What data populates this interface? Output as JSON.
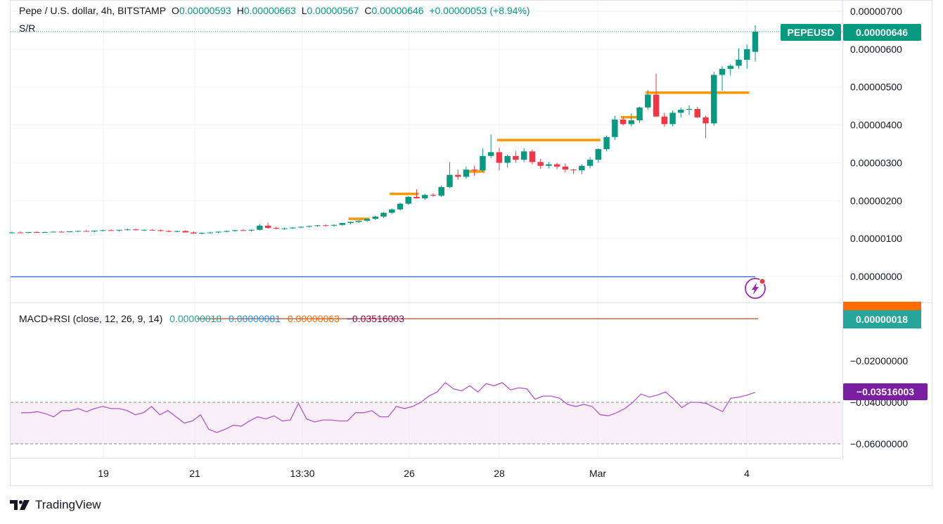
{
  "header": {
    "symbol": "Pepe / U.S. dollar, 4h, BITSTAMP",
    "o_label": "O",
    "o_value": "0.00000593",
    "h_label": "H",
    "h_value": "0.00000663",
    "l_label": "L",
    "l_value": "0.00000567",
    "c_label": "C",
    "c_value": "0.00000646",
    "change": "+0.00000053 (+8.94%)"
  },
  "indicator_sr": "S/R",
  "macd_header": {
    "name": "MACD+RSI (close, 12, 26, 9, 14)",
    "v1": "0.00000018",
    "v2": "0.00000081",
    "v3": "0.00000063",
    "v4": "−0.03516003"
  },
  "colors": {
    "up": "#089981",
    "down": "#f23645",
    "sr": "#ff9800",
    "rsi": "#b256c8",
    "zero_line": "#2962ff",
    "macd_signal": "#ff6d00"
  },
  "badges": {
    "symbol": "PEPEUSD",
    "price": "0.00000646",
    "macd": "0.00000018",
    "rsi": "−0.03516003"
  },
  "chart_data": [
    {
      "type": "candlestick",
      "title": "Pepe / U.S. dollar, 4h, BITSTAMP",
      "y_ticks": [
        "0.00000700",
        "0.00000600",
        "0.00000500",
        "0.00000400",
        "0.00000300",
        "0.00000200",
        "0.00000100",
        "0.00000000"
      ],
      "x_ticks": [
        "19",
        "21",
        "13:30",
        "26",
        "28",
        "Mar",
        "4"
      ],
      "ylim": [
        0,
        7e-06
      ],
      "candles_e8": [
        [
          115,
          118,
          113,
          116
        ],
        [
          116,
          118,
          114,
          115
        ],
        [
          115,
          117,
          114,
          117
        ],
        [
          117,
          119,
          115,
          116
        ],
        [
          116,
          118,
          115,
          117
        ],
        [
          117,
          119,
          116,
          118
        ],
        [
          118,
          120,
          116,
          117
        ],
        [
          117,
          119,
          116,
          119
        ],
        [
          119,
          121,
          117,
          120
        ],
        [
          120,
          122,
          118,
          119
        ],
        [
          119,
          121,
          117,
          121
        ],
        [
          121,
          123,
          119,
          122
        ],
        [
          122,
          124,
          120,
          121
        ],
        [
          121,
          123,
          119,
          123
        ],
        [
          123,
          126,
          121,
          124
        ],
        [
          124,
          126,
          121,
          122
        ],
        [
          122,
          124,
          120,
          123
        ],
        [
          123,
          125,
          121,
          122
        ],
        [
          122,
          124,
          119,
          120
        ],
        [
          120,
          122,
          117,
          118
        ],
        [
          118,
          121,
          116,
          120
        ],
        [
          120,
          122,
          118,
          116
        ],
        [
          116,
          119,
          113,
          113
        ],
        [
          113,
          116,
          111,
          115
        ],
        [
          115,
          118,
          113,
          116
        ],
        [
          116,
          119,
          114,
          118
        ],
        [
          118,
          121,
          116,
          120
        ],
        [
          120,
          123,
          118,
          122
        ],
        [
          122,
          125,
          120,
          121
        ],
        [
          121,
          124,
          119,
          123
        ],
        [
          123,
          138,
          121,
          134
        ],
        [
          134,
          142,
          126,
          128
        ],
        [
          128,
          131,
          124,
          126
        ],
        [
          126,
          129,
          123,
          127
        ],
        [
          127,
          130,
          125,
          129
        ],
        [
          129,
          132,
          127,
          131
        ],
        [
          131,
          134,
          129,
          133
        ],
        [
          133,
          136,
          131,
          135
        ],
        [
          135,
          138,
          132,
          134
        ],
        [
          134,
          137,
          131,
          136
        ],
        [
          136,
          140,
          134,
          141
        ],
        [
          141,
          145,
          138,
          144
        ],
        [
          144,
          148,
          141,
          147
        ],
        [
          147,
          152,
          144,
          152
        ],
        [
          152,
          160,
          149,
          158
        ],
        [
          158,
          170,
          155,
          168
        ],
        [
          168,
          180,
          164,
          177
        ],
        [
          177,
          195,
          174,
          192
        ],
        [
          192,
          212,
          189,
          210
        ],
        [
          210,
          230,
          206,
          206
        ],
        [
          206,
          218,
          202,
          215
        ],
        [
          215,
          220,
          210,
          213
        ],
        [
          213,
          240,
          210,
          236
        ],
        [
          236,
          302,
          233,
          268
        ],
        [
          268,
          282,
          255,
          263
        ],
        [
          263,
          290,
          258,
          282
        ],
        [
          282,
          292,
          266,
          280
        ],
        [
          280,
          338,
          276,
          318
        ],
        [
          318,
          375,
          312,
          328
        ],
        [
          328,
          340,
          280,
          300
        ],
        [
          300,
          322,
          288,
          318
        ],
        [
          318,
          330,
          300,
          308
        ],
        [
          308,
          338,
          302,
          330
        ],
        [
          330,
          335,
          296,
          302
        ],
        [
          302,
          310,
          284,
          292
        ],
        [
          292,
          302,
          285,
          296
        ],
        [
          296,
          300,
          283,
          290
        ],
        [
          290,
          298,
          275,
          282
        ],
        [
          282,
          284,
          270,
          280
        ],
        [
          280,
          296,
          270,
          292
        ],
        [
          292,
          315,
          285,
          308
        ],
        [
          308,
          338,
          300,
          336
        ],
        [
          336,
          372,
          330,
          368
        ],
        [
          368,
          424,
          360,
          414
        ],
        [
          414,
          420,
          398,
          402
        ],
        [
          402,
          430,
          396,
          412
        ],
        [
          412,
          448,
          405,
          446
        ],
        [
          446,
          492,
          440,
          480
        ],
        [
          480,
          536,
          470,
          422
        ],
        [
          422,
          432,
          395,
          402
        ],
        [
          402,
          438,
          396,
          432
        ],
        [
          432,
          446,
          420,
          440
        ],
        [
          440,
          452,
          426,
          442
        ],
        [
          442,
          448,
          418,
          420
        ],
        [
          420,
          425,
          365,
          404
        ],
        [
          404,
          540,
          398,
          532
        ],
        [
          532,
          555,
          490,
          548
        ],
        [
          548,
          560,
          530,
          556
        ],
        [
          556,
          602,
          548,
          572
        ],
        [
          572,
          612,
          548,
          600
        ],
        [
          593,
          663,
          567,
          646
        ]
      ],
      "sr_lines": [
        {
          "from": 41,
          "to": 43,
          "value": 1.52e-06
        },
        {
          "from": 46,
          "to": 49,
          "value": 2.18e-06
        },
        {
          "from": 55,
          "to": 57,
          "value": 2.77e-06
        },
        {
          "from": 59,
          "to": 71,
          "value": 3.6e-06
        },
        {
          "from": 74,
          "to": 76,
          "value": 4.2e-06
        },
        {
          "from": 77,
          "to": 89,
          "value": 4.85e-06
        }
      ],
      "last_price": 6.46e-06
    },
    {
      "type": "line",
      "title": "MACD+RSI (close, 12, 26, 9, 14)",
      "y_ticks": [
        "−0.02000000",
        "−0.04000000",
        "−0.06000000"
      ],
      "ylim": [
        -0.0625,
        -0.014
      ],
      "rsi_band": [
        -0.04,
        -0.06
      ],
      "rsi_x": [
        0,
        1,
        2,
        3,
        4,
        5,
        6,
        7,
        8,
        9,
        10,
        11,
        12,
        13,
        14,
        15,
        16,
        17,
        18,
        19,
        20,
        21,
        22,
        23,
        24,
        25,
        26,
        27,
        28,
        29,
        30,
        31,
        32,
        33,
        34,
        35,
        36,
        37,
        38,
        39,
        40,
        41,
        42,
        43,
        44,
        45,
        46,
        47,
        48,
        49,
        50,
        51,
        52,
        53,
        54,
        55,
        56,
        57,
        58,
        59,
        60,
        61,
        62,
        63,
        64,
        65,
        66,
        67,
        68,
        69,
        70,
        71,
        72,
        73,
        74,
        75,
        76,
        77,
        78,
        79,
        80,
        81,
        82,
        83,
        84,
        85,
        86,
        87,
        88,
        89,
        90
      ],
      "rsi_y": [
        -0.045,
        -0.045,
        -0.0445,
        -0.0455,
        -0.047,
        -0.044,
        -0.044,
        -0.043,
        -0.0445,
        -0.043,
        -0.042,
        -0.043,
        -0.043,
        -0.044,
        -0.046,
        -0.045,
        -0.042,
        -0.046,
        -0.044,
        -0.047,
        -0.05,
        -0.049,
        -0.046,
        -0.053,
        -0.0545,
        -0.053,
        -0.051,
        -0.0515,
        -0.049,
        -0.047,
        -0.048,
        -0.0465,
        -0.049,
        -0.0485,
        -0.0405,
        -0.048,
        -0.0495,
        -0.0485,
        -0.0485,
        -0.049,
        -0.049,
        -0.045,
        -0.045,
        -0.044,
        -0.047,
        -0.047,
        -0.042,
        -0.043,
        -0.042,
        -0.04,
        -0.037,
        -0.035,
        -0.0305,
        -0.0335,
        -0.0345,
        -0.032,
        -0.035,
        -0.031,
        -0.032,
        -0.0305,
        -0.034,
        -0.033,
        -0.0335,
        -0.0385,
        -0.037,
        -0.037,
        -0.038,
        -0.041,
        -0.042,
        -0.041,
        -0.042,
        -0.046,
        -0.0465,
        -0.045,
        -0.043,
        -0.04,
        -0.036,
        -0.0375,
        -0.0365,
        -0.035,
        -0.0385,
        -0.0425,
        -0.04,
        -0.04,
        -0.0405,
        -0.0425,
        -0.0445,
        -0.038,
        -0.0375,
        -0.0365,
        -0.0352
      ]
    }
  ]
}
